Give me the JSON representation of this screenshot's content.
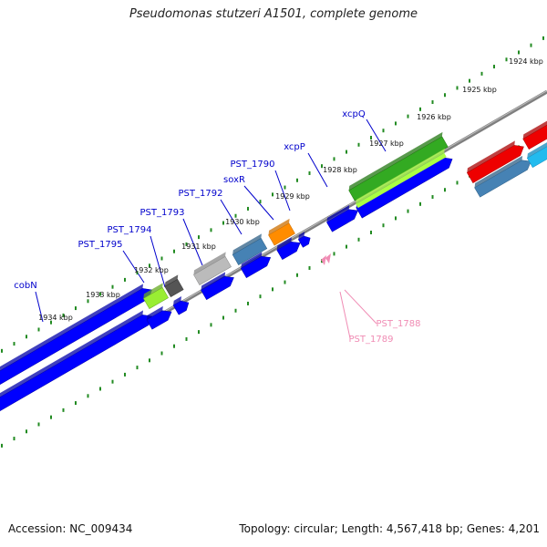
{
  "title": "Pseudomonas stutzeri A1501, complete genome",
  "footer": {
    "accession_label": "Accession: NC_009434",
    "summary_label": "Topology: circular; Length: 4,567,418 bp; Genes: 4,201"
  },
  "ruler": {
    "ticks": [
      {
        "kbp": 1924,
        "label": "1924 kbp"
      },
      {
        "kbp": 1925,
        "label": "1925 kbp"
      },
      {
        "kbp": 1926,
        "label": "1926 kbp"
      },
      {
        "kbp": 1927,
        "label": "1927 kbp"
      },
      {
        "kbp": 1928,
        "label": "1928 kbp"
      },
      {
        "kbp": 1929,
        "label": "1929 kbp"
      },
      {
        "kbp": 1930,
        "label": "1930 kbp"
      },
      {
        "kbp": 1931,
        "label": "1931 kbp"
      },
      {
        "kbp": 1932,
        "label": "1932 kbp"
      },
      {
        "kbp": 1933,
        "label": "1933 kbp"
      },
      {
        "kbp": 1934,
        "label": "1934 kbp"
      }
    ]
  },
  "gene_labels": [
    {
      "name": "cobN",
      "color": "#0000cc"
    },
    {
      "name": "PST_1795",
      "color": "#0000cc"
    },
    {
      "name": "PST_1794",
      "color": "#0000cc"
    },
    {
      "name": "PST_1793",
      "color": "#0000cc"
    },
    {
      "name": "PST_1792",
      "color": "#0000cc"
    },
    {
      "name": "soxR",
      "color": "#0000cc"
    },
    {
      "name": "PST_1790",
      "color": "#0000cc"
    },
    {
      "name": "xcpP",
      "color": "#0000cc"
    },
    {
      "name": "xcpQ",
      "color": "#0000cc"
    },
    {
      "name": "PST_1788",
      "color": "#f08cb4"
    },
    {
      "name": "PST_1789",
      "color": "#f08cb4"
    }
  ],
  "colors": {
    "gene_blue": "#0000ff",
    "backbone": "#808080",
    "tick_green": "#228b22",
    "tRNA_pink": "#f08cb4",
    "label_blue": "#0000cc"
  }
}
